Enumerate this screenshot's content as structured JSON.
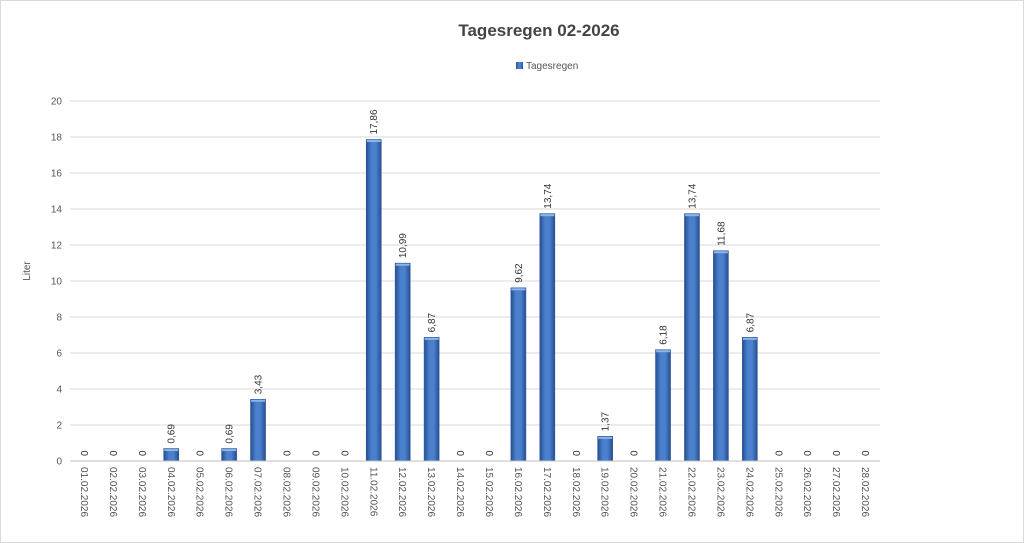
{
  "chart_data": {
    "type": "bar",
    "title": "Tagesregen 02-2026",
    "xlabel": "",
    "ylabel": "Liter",
    "ylim": [
      0,
      20
    ],
    "yticks": [
      0,
      2,
      4,
      6,
      8,
      10,
      12,
      14,
      16,
      18,
      20
    ],
    "grid": true,
    "legend_position": "top-center",
    "bar_color": "#3F72C0",
    "series": [
      {
        "name": "Tagesregen",
        "values": [
          0,
          0,
          0,
          0.69,
          0,
          0.69,
          3.43,
          0,
          0,
          0,
          17.86,
          10.99,
          6.87,
          0,
          0,
          9.62,
          13.74,
          0,
          1.37,
          0,
          6.18,
          13.74,
          11.68,
          6.87,
          0,
          0,
          0,
          0
        ],
        "labels": [
          "0",
          "0",
          "0",
          "0,69",
          "0",
          "0,69",
          "3,43",
          "0",
          "0",
          "0",
          "17,86",
          "10,99",
          "6,87",
          "0",
          "0",
          "9,62",
          "13,74",
          "0",
          "1,37",
          "0",
          "6,18",
          "13,74",
          "11,68",
          "6,87",
          "0",
          "0",
          "0",
          "0"
        ]
      }
    ],
    "categories": [
      "01.02.2026",
      "02.02.2026",
      "03.02.2026",
      "04.02.2026",
      "05.02.2026",
      "06.02.2026",
      "07.02.2026",
      "08.02.2026",
      "09.02.2026",
      "10.02.2026",
      "11.02.2026",
      "12.02.2026",
      "13.02.2026",
      "14.02.2026",
      "15.02.2026",
      "16.02.2026",
      "17.02.2026",
      "18.02.2026",
      "19.02.2026",
      "20.02.2026",
      "21.02.2026",
      "22.02.2026",
      "23.02.2026",
      "24.02.2026",
      "25.02.2026",
      "26.02.2026",
      "27.02.2026",
      "28.02.2026"
    ]
  }
}
